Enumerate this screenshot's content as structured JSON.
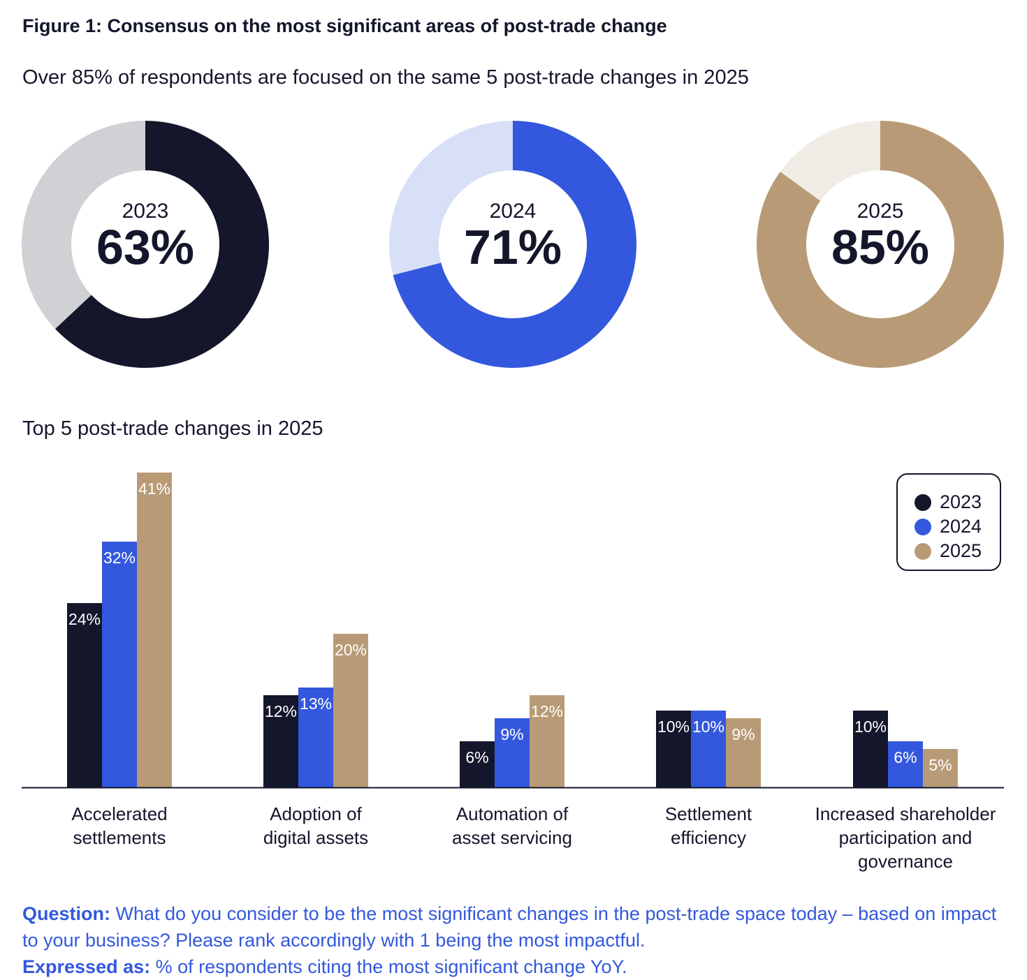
{
  "header": {
    "title": "Figure 1: Consensus on the most significant areas of post-trade change",
    "subtitle": "Over 85% of respondents are focused on the same 5 post-trade changes in 2025"
  },
  "chart_data": [
    {
      "type": "pie",
      "variant": "donut",
      "categories": [
        "2023",
        "2024",
        "2025"
      ],
      "values": [
        63,
        71,
        85
      ],
      "center_labels": [
        {
          "year": "2023",
          "value_label": "63%"
        },
        {
          "year": "2024",
          "value_label": "71%"
        },
        {
          "year": "2025",
          "value_label": "85%"
        }
      ],
      "colors": {
        "filled": [
          "#14162b",
          "#3358dd",
          "#b89b76"
        ],
        "remainder": [
          "#d0d1d4",
          "#d7e0f7",
          "#f0ebe4"
        ]
      }
    },
    {
      "type": "bar",
      "title": "Top 5 post-trade changes in 2025",
      "categories": [
        [
          "Accelerated",
          "settlements"
        ],
        [
          "Adoption of",
          "digital assets"
        ],
        [
          "Automation of",
          "asset servicing"
        ],
        [
          "Settlement",
          "efficiency"
        ],
        [
          "Increased shareholder",
          "participation and",
          "governance"
        ]
      ],
      "series": [
        {
          "name": "2023",
          "color": "#14162b",
          "values": [
            24,
            12,
            6,
            10,
            10
          ],
          "labels": [
            "24%",
            "12%",
            "6%",
            "10%",
            "10%"
          ]
        },
        {
          "name": "2024",
          "color": "#3358dd",
          "values": [
            32,
            13,
            9,
            10,
            6
          ],
          "labels": [
            "32%",
            "13%",
            "9%",
            "10%",
            "6%"
          ]
        },
        {
          "name": "2025",
          "color": "#b89b76",
          "values": [
            41,
            20,
            12,
            9,
            5
          ],
          "labels": [
            "41%",
            "20%",
            "12%",
            "9%",
            "5%"
          ]
        }
      ],
      "ylim": [
        0,
        41
      ],
      "grid": false,
      "legend": "top-right"
    }
  ],
  "legend": {
    "items": [
      {
        "label": "2023",
        "color": "#14162b"
      },
      {
        "label": "2024",
        "color": "#3358dd"
      },
      {
        "label": "2025",
        "color": "#b89b76"
      }
    ]
  },
  "footnote": {
    "question_label": "Question:",
    "question_text": "What do you consider to be the most significant changes in the post-trade space today – based on impact to your business? Please rank accordingly with 1 being the most impactful.",
    "expressed_label": "Expressed as:",
    "expressed_text": "% of respondents citing the most significant change YoY."
  }
}
